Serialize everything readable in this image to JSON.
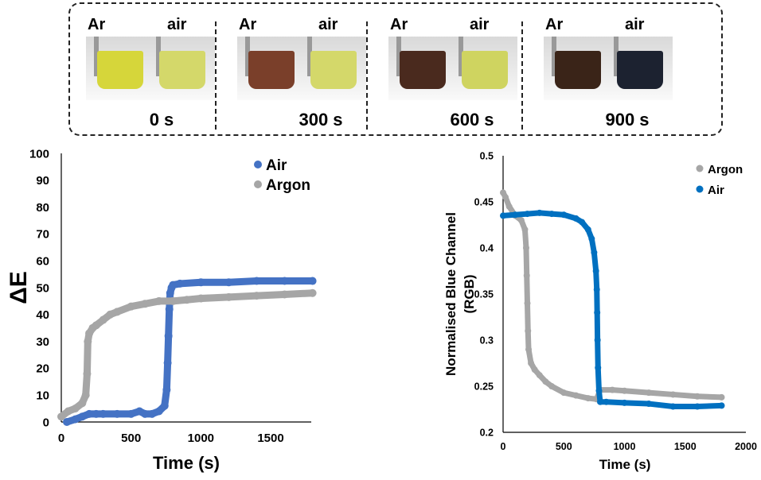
{
  "photo_strip": {
    "panels": [
      {
        "left_label": "Ar",
        "right_label": "air",
        "time": "0 s",
        "left_color": "#d6d63a",
        "right_color": "#d4d86a"
      },
      {
        "left_label": "Ar",
        "right_label": "air",
        "time": "300 s",
        "left_color": "#7a3f2a",
        "right_color": "#d4d86a"
      },
      {
        "left_label": "Ar",
        "right_label": "air",
        "time": "600 s",
        "left_color": "#4a2a1e",
        "right_color": "#cfd460"
      },
      {
        "left_label": "Ar",
        "right_label": "air",
        "time": "900 s",
        "left_color": "#3a2418",
        "right_color": "#1c2230"
      }
    ]
  },
  "chart_data": [
    {
      "type": "scatter",
      "xlabel": "Time (s)",
      "ylabel": "ΔE",
      "xlim": [
        0,
        1800
      ],
      "ylim": [
        0,
        100
      ],
      "xticks": [
        0,
        500,
        1000,
        1500
      ],
      "yticks": [
        0,
        10,
        20,
        30,
        40,
        50,
        60,
        70,
        80,
        90,
        100
      ],
      "grid": false,
      "legend": "top-right",
      "series": [
        {
          "name": "Air",
          "color": "#4472C4",
          "x": [
            40,
            100,
            150,
            200,
            250,
            300,
            400,
            500,
            560,
            600,
            650,
            700,
            740,
            755,
            762,
            768,
            774,
            780,
            790,
            800,
            850,
            1000,
            1200,
            1400,
            1600,
            1800
          ],
          "y": [
            0,
            1,
            2,
            3,
            3,
            3,
            3,
            3,
            4,
            3,
            3,
            4,
            6,
            12,
            22,
            32,
            42,
            48,
            50,
            51,
            51.5,
            52,
            52,
            52.5,
            52.5,
            52.5
          ]
        },
        {
          "name": "Argon",
          "color": "#A6A6A6",
          "x": [
            0,
            50,
            100,
            150,
            175,
            185,
            190,
            200,
            225,
            250,
            300,
            350,
            400,
            500,
            600,
            700,
            800,
            900,
            1000,
            1200,
            1400,
            1600,
            1800
          ],
          "y": [
            2,
            4,
            5,
            7,
            10,
            18,
            30,
            33,
            35,
            36,
            38,
            40,
            41,
            43,
            44,
            45,
            45,
            45.5,
            46,
            46.5,
            47,
            47.5,
            48
          ]
        }
      ]
    },
    {
      "type": "scatter",
      "xlabel": "Time (s)",
      "ylabel": "Normalised Blue Channel (RGB)",
      "xlim": [
        0,
        2000
      ],
      "ylim": [
        0.2,
        0.5
      ],
      "xticks": [
        0,
        500,
        1000,
        1500,
        2000
      ],
      "yticks": [
        "0.2",
        "0.25",
        "0.3",
        "0.35",
        "0.4",
        "0.45",
        "0.5"
      ],
      "grid": false,
      "legend": "top-right",
      "series": [
        {
          "name": "Argon",
          "color": "#A6A6A6",
          "x": [
            0,
            20,
            50,
            100,
            150,
            180,
            190,
            195,
            200,
            205,
            210,
            230,
            260,
            300,
            350,
            400,
            500,
            600,
            700,
            770,
            800,
            900,
            1000,
            1200,
            1400,
            1600,
            1800
          ],
          "y": [
            0.46,
            0.455,
            0.445,
            0.435,
            0.43,
            0.42,
            0.4,
            0.37,
            0.34,
            0.31,
            0.29,
            0.275,
            0.268,
            0.262,
            0.255,
            0.25,
            0.243,
            0.24,
            0.237,
            0.236,
            0.246,
            0.246,
            0.245,
            0.243,
            0.241,
            0.239,
            0.238
          ]
        },
        {
          "name": "Air",
          "color": "#0070C0",
          "x": [
            0,
            100,
            200,
            300,
            400,
            500,
            600,
            650,
            700,
            730,
            750,
            765,
            772,
            775,
            778,
            782,
            790,
            800,
            850,
            1000,
            1200,
            1400,
            1600,
            1800
          ],
          "y": [
            0.435,
            0.436,
            0.437,
            0.438,
            0.437,
            0.436,
            0.432,
            0.428,
            0.42,
            0.41,
            0.395,
            0.375,
            0.355,
            0.33,
            0.3,
            0.27,
            0.245,
            0.233,
            0.233,
            0.232,
            0.231,
            0.228,
            0.228,
            0.229
          ]
        }
      ]
    }
  ]
}
